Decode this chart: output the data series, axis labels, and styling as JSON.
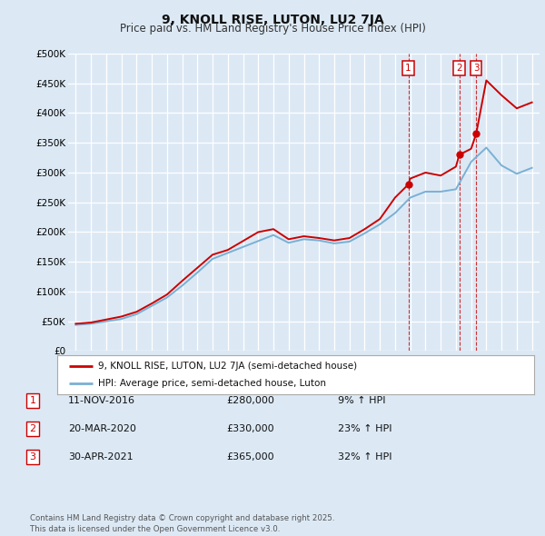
{
  "title": "9, KNOLL RISE, LUTON, LU2 7JA",
  "subtitle": "Price paid vs. HM Land Registry's House Price Index (HPI)",
  "background_color": "#dce9f5",
  "plot_bg_color": "#dce9f5",
  "grid_color": "#ffffff",
  "red_line_color": "#cc0000",
  "blue_line_color": "#7ab0d4",
  "legend_label_red": "9, KNOLL RISE, LUTON, LU2 7JA (semi-detached house)",
  "legend_label_blue": "HPI: Average price, semi-detached house, Luton",
  "transactions": [
    {
      "num": 1,
      "date": "11-NOV-2016",
      "price": "£280,000",
      "change": "9% ↑ HPI"
    },
    {
      "num": 2,
      "date": "20-MAR-2020",
      "price": "£330,000",
      "change": "23% ↑ HPI"
    },
    {
      "num": 3,
      "date": "30-APR-2021",
      "price": "£365,000",
      "change": "32% ↑ HPI"
    }
  ],
  "transaction_years": [
    2016.87,
    2020.22,
    2021.33
  ],
  "transaction_prices": [
    280000,
    330000,
    365000
  ],
  "footnote": "Contains HM Land Registry data © Crown copyright and database right 2025.\nThis data is licensed under the Open Government Licence v3.0.",
  "ylim": [
    0,
    500000
  ],
  "yticks": [
    0,
    50000,
    100000,
    150000,
    200000,
    250000,
    300000,
    350000,
    400000,
    450000,
    500000
  ],
  "xlim": [
    1994.5,
    2025.5
  ],
  "hpi_years": [
    1995,
    1996,
    1997,
    1998,
    1999,
    2000,
    2001,
    2002,
    2003,
    2004,
    2005,
    2006,
    2007,
    2008,
    2009,
    2010,
    2011,
    2012,
    2013,
    2014,
    2015,
    2016,
    2017,
    2018,
    2019,
    2020,
    2021,
    2022,
    2023,
    2024,
    2025
  ],
  "hpi_values": [
    44000,
    46000,
    50000,
    54000,
    62000,
    76000,
    90000,
    110000,
    132000,
    155000,
    165000,
    175000,
    185000,
    195000,
    182000,
    188000,
    186000,
    181000,
    184000,
    198000,
    213000,
    232000,
    258000,
    268000,
    268000,
    272000,
    318000,
    342000,
    312000,
    298000,
    308000
  ],
  "red_years": [
    1995,
    1996,
    1997,
    1998,
    1999,
    2000,
    2001,
    2002,
    2003,
    2004,
    2005,
    2006,
    2007,
    2008,
    2009,
    2010,
    2011,
    2012,
    2013,
    2014,
    2015,
    2016,
    2016.87,
    2017,
    2018,
    2019,
    2020,
    2020.22,
    2021,
    2021.33,
    2022,
    2023,
    2024,
    2025
  ],
  "red_values": [
    46000,
    48000,
    53000,
    58000,
    66000,
    80000,
    95000,
    118000,
    140000,
    162000,
    170000,
    185000,
    200000,
    205000,
    188000,
    193000,
    190000,
    186000,
    190000,
    205000,
    222000,
    258000,
    280000,
    290000,
    300000,
    295000,
    310000,
    330000,
    340000,
    365000,
    455000,
    430000,
    408000,
    418000
  ]
}
